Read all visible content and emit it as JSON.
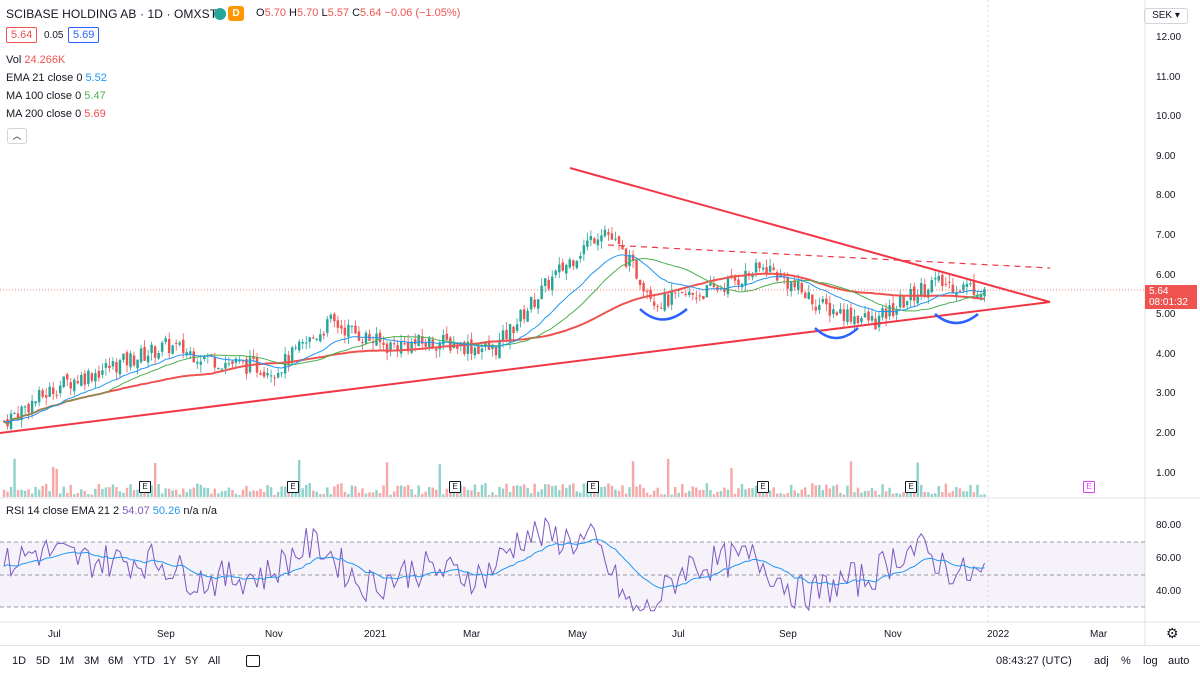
{
  "header": {
    "title": "SCIBASE HOLDING AB · 1D · OMXSTO",
    "interval_tag": "D",
    "ohlc": [
      {
        "k": "O",
        "v": "5.70"
      },
      {
        "k": "H",
        "v": "5.70"
      },
      {
        "k": "L",
        "v": "5.57"
      },
      {
        "k": "C",
        "v": "5.64"
      },
      {
        "k": "",
        "v": "−0.06 (−1.05%)"
      }
    ],
    "bid": "5.64",
    "spread": "0.05",
    "ask": "5.69"
  },
  "indicators": [
    {
      "label": "Vol",
      "value": "24.266K",
      "color": "#ef5350"
    },
    {
      "label": "EMA 21 close 0",
      "value": "5.52",
      "color": "#2196f3"
    },
    {
      "label": "MA 100 close 0",
      "value": "5.47",
      "color": "#4caf50"
    },
    {
      "label": "MA 200 close 0",
      "value": "5.69",
      "color": "#ef5350"
    }
  ],
  "currency": "SEK",
  "price_label": {
    "price": "5.64",
    "time": "08:01:32"
  },
  "y_axis": [
    "12.00",
    "11.00",
    "10.00",
    "9.00",
    "8.00",
    "7.00",
    "6.00",
    "5.00",
    "4.00",
    "3.00",
    "2.00",
    "1.00"
  ],
  "rsi_axis": [
    "80.00",
    "60.00",
    "40.00"
  ],
  "x_axis": [
    "Jul",
    "Sep",
    "Nov",
    "2021",
    "Mar",
    "May",
    "Jul",
    "Sep",
    "Nov",
    "2022",
    "Mar"
  ],
  "rsi_legend": {
    "label": "RSI 14 close EMA 21 2",
    "v1": "54.07",
    "v2": "50.26",
    "v3": "n/a",
    "v4": "n/a"
  },
  "events": [
    "E",
    "E",
    "E",
    "E",
    "E",
    "E",
    "E"
  ],
  "ranges": [
    "1D",
    "5D",
    "1M",
    "3M",
    "6M",
    "YTD",
    "1Y",
    "5Y",
    "All"
  ],
  "bottom_right": {
    "time": "08:43:27 (UTC)",
    "adj": "adj",
    "pct": "%",
    "log": "log",
    "auto": "auto"
  },
  "colors": {
    "up": "#26a69a",
    "down": "#ef5350",
    "trend": "#f23645",
    "ema": "#2196f3",
    "ma100": "#4caf50",
    "ma200": "#ef5350",
    "rsi": "#7e57c2",
    "pattern": "#2962ff"
  },
  "icons": {
    "collapse": "chevron-up-icon",
    "settings": "gear-icon",
    "compare": "calendar-range-icon"
  },
  "chart_data": {
    "type": "candlestick",
    "symbol": "SCIBASE HOLDING AB",
    "close_series_approx": {
      "x": [
        "2020-06",
        "2020-07",
        "2020-08",
        "2020-09",
        "2020-10",
        "2020-11",
        "2020-12",
        "2021-01",
        "2021-02",
        "2021-03",
        "2021-04",
        "2021-05",
        "2021-06",
        "2021-07",
        "2021-08",
        "2021-09",
        "2021-10",
        "2021-11",
        "2021-12"
      ],
      "values": [
        2.3,
        3.2,
        3.7,
        4.2,
        3.8,
        3.6,
        4.8,
        4.2,
        4.3,
        4.1,
        5.8,
        7.2,
        5.3,
        5.6,
        6.2,
        5.2,
        4.8,
        5.8,
        5.64
      ]
    },
    "ylim": [
      0.5,
      12.5
    ]
  }
}
